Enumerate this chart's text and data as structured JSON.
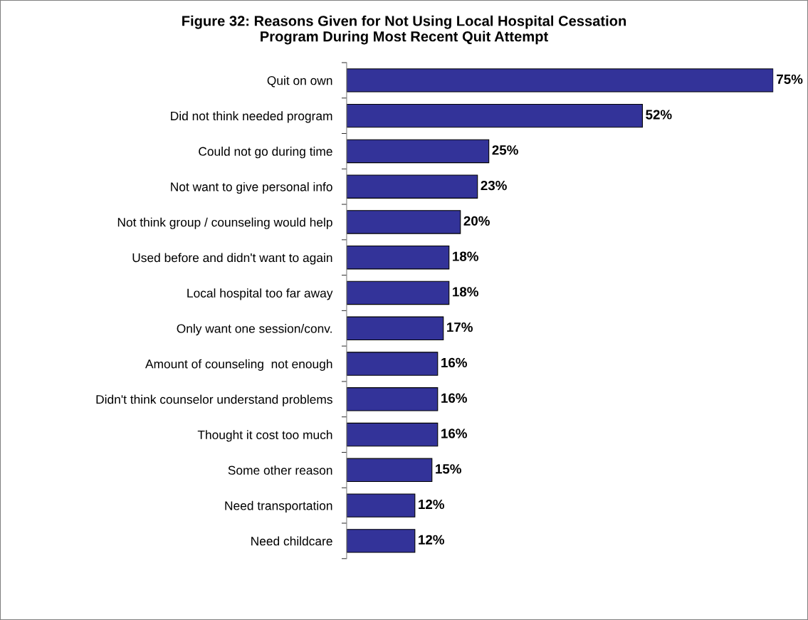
{
  "chart_data": {
    "type": "bar",
    "orientation": "horizontal",
    "title": "Figure 32: Reasons Given for Not Using Local Hospital Cessation\nProgram During Most Recent Quit Attempt",
    "categories": [
      "Quit on own",
      "Did not think needed program",
      "Could not go during time",
      "Not want to give personal info",
      "Not think group / counseling would help",
      "Used before and didn't want to again",
      "Local hospital too far away",
      "Only want one session/conv.",
      "Amount of counseling  not enough",
      "Didn't think counselor understand problems",
      "Thought it cost too much",
      "Some other reason",
      "Need transportation",
      "Need childcare"
    ],
    "values": [
      75,
      52,
      25,
      23,
      20,
      18,
      18,
      17,
      16,
      16,
      16,
      15,
      12,
      12
    ],
    "value_labels": [
      "75%",
      "52%",
      "25%",
      "23%",
      "20%",
      "18%",
      "18%",
      "17%",
      "16%",
      "16%",
      "16%",
      "15%",
      "12%",
      "12%"
    ],
    "color": "#333399",
    "grid": false,
    "legend": false
  }
}
